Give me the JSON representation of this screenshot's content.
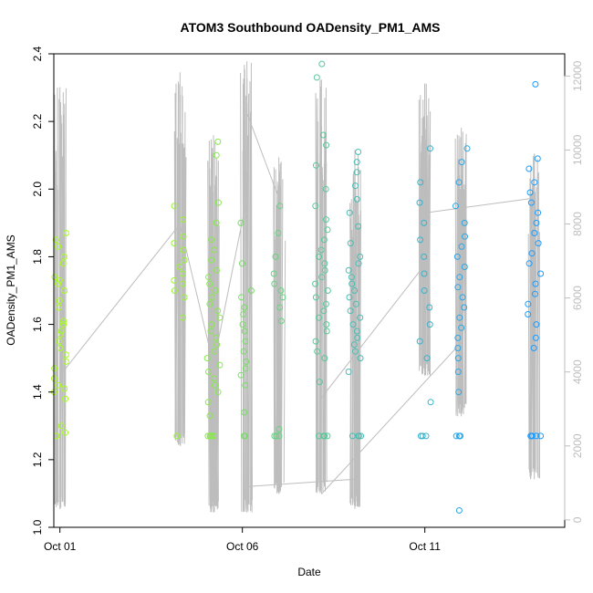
{
  "chart_data": {
    "type": "scatter",
    "title": "ATOM3 Southbound OADensity_PM1_AMS",
    "xlabel": "Date",
    "ylabel": "OADensity_PM1_AMS",
    "x_axis": {
      "type": "date",
      "range": [
        "2016-09-30T20:00",
        "2016-10-14T20:00"
      ],
      "ticks": [
        "Oct 01",
        "Oct 06",
        "Oct 11"
      ],
      "tick_dates": [
        "2016-10-01",
        "2016-10-06",
        "2016-10-11"
      ]
    },
    "y_axis": {
      "range": [
        1.0,
        2.4
      ],
      "ticks": [
        "1.0",
        "1.2",
        "1.4",
        "1.6",
        "1.8",
        "2.0",
        "2.2",
        "2.4"
      ]
    },
    "y2_axis": {
      "side": "right",
      "color": "#bdbdbd",
      "range": [
        -200,
        12600
      ],
      "ticks": [
        "0",
        "2000",
        "4000",
        "6000",
        "8000",
        "10000",
        "12000"
      ],
      "description": "altitude profile (gray line)"
    },
    "grid": false,
    "point_color_ramp": [
      "#a6ff1a",
      "#1a9cff"
    ],
    "profile_color": "#bdbdbd",
    "clusters": [
      {
        "date": "2016-10-01T00:00",
        "values": [
          1.27,
          1.28,
          1.3,
          1.38,
          1.4,
          1.41,
          1.42,
          1.44,
          1.47,
          1.49,
          1.51,
          1.53,
          1.55,
          1.57,
          1.58,
          1.6,
          1.61,
          1.65,
          1.67,
          1.7,
          1.72,
          1.73,
          1.74,
          1.78,
          1.8,
          1.83,
          1.85,
          1.87
        ],
        "alt_range": [
          300,
          11700
        ]
      },
      {
        "date": "2016-10-04T07:00",
        "values": [
          1.27,
          1.62,
          1.68,
          1.7,
          1.72,
          1.73,
          1.75,
          1.77,
          1.79,
          1.82,
          1.84,
          1.86,
          1.91,
          1.95
        ],
        "alt_range": [
          2000,
          12100
        ]
      },
      {
        "date": "2016-10-05T05:00",
        "values": [
          1.27,
          1.27,
          1.27,
          1.27,
          1.27,
          1.33,
          1.37,
          1.4,
          1.42,
          1.44,
          1.46,
          1.48,
          1.5,
          1.52,
          1.54,
          1.56,
          1.58,
          1.6,
          1.62,
          1.64,
          1.66,
          1.68,
          1.7,
          1.72,
          1.74,
          1.76,
          1.79,
          1.82,
          1.85,
          1.9,
          1.96,
          2.1,
          2.14
        ],
        "alt_range": [
          200,
          10400
        ]
      },
      {
        "date": "2016-10-06T03:00",
        "values": [
          1.27,
          1.27,
          1.34,
          1.42,
          1.45,
          1.47,
          1.49,
          1.52,
          1.55,
          1.58,
          1.6,
          1.63,
          1.65,
          1.68,
          1.7,
          1.78,
          1.9
        ],
        "alt_range": [
          200,
          12400
        ]
      },
      {
        "date": "2016-10-07T00:00",
        "values": [
          1.27,
          1.27,
          1.27,
          1.29,
          1.61,
          1.65,
          1.68,
          1.7,
          1.72,
          1.75,
          1.8,
          1.87,
          1.95
        ],
        "alt_range": [
          700,
          9800
        ]
      },
      {
        "date": "2016-10-08T04:00",
        "values": [
          1.27,
          1.27,
          1.27,
          1.27,
          1.43,
          1.5,
          1.52,
          1.55,
          1.58,
          1.6,
          1.62,
          1.64,
          1.66,
          1.68,
          1.7,
          1.72,
          1.74,
          1.76,
          1.78,
          1.8,
          1.82,
          1.85,
          1.88,
          1.91,
          1.95,
          2.0,
          2.07,
          2.13,
          2.16,
          2.33,
          2.37
        ],
        "alt_range": [
          700,
          11900
        ]
      },
      {
        "date": "2016-10-09T02:00",
        "values": [
          1.27,
          1.27,
          1.27,
          1.27,
          1.46,
          1.5,
          1.52,
          1.54,
          1.56,
          1.58,
          1.6,
          1.62,
          1.64,
          1.66,
          1.68,
          1.7,
          1.72,
          1.74,
          1.76,
          1.78,
          1.8,
          1.84,
          1.89,
          1.93,
          1.97,
          2.01,
          2.05,
          2.08,
          2.11
        ],
        "alt_range": [
          300,
          10000
        ]
      },
      {
        "date": "2016-10-11T00:00",
        "values": [
          1.27,
          1.27,
          1.27,
          1.37,
          1.5,
          1.55,
          1.6,
          1.65,
          1.7,
          1.75,
          1.8,
          1.85,
          1.9,
          1.96,
          2.02,
          2.12
        ],
        "alt_range": [
          3900,
          11800
        ]
      },
      {
        "date": "2016-10-12T00:00",
        "values": [
          1.05,
          1.27,
          1.27,
          1.27,
          1.27,
          1.4,
          1.46,
          1.5,
          1.53,
          1.56,
          1.59,
          1.62,
          1.65,
          1.68,
          1.71,
          1.74,
          1.77,
          1.8,
          1.83,
          1.86,
          1.9,
          1.95,
          2.02,
          2.08,
          2.12
        ],
        "alt_range": [
          2800,
          10600
        ]
      },
      {
        "date": "2016-10-14T00:00",
        "values": [
          1.27,
          1.27,
          1.27,
          1.27,
          1.27,
          1.53,
          1.56,
          1.6,
          1.63,
          1.66,
          1.69,
          1.72,
          1.75,
          1.78,
          1.81,
          1.84,
          1.87,
          1.9,
          1.93,
          1.96,
          1.99,
          2.02,
          2.06,
          2.09,
          2.31
        ],
        "alt_range": [
          1100,
          9900
        ]
      }
    ],
    "transit_segments": [
      {
        "points": [
          [
            "2016-10-01T00:00",
            3900
          ],
          [
            "2016-10-04T07:00",
            8000
          ]
        ]
      },
      {
        "points": [
          [
            "2016-10-04T07:00",
            8000
          ],
          [
            "2016-10-05T05:00",
            4200
          ]
        ]
      },
      {
        "points": [
          [
            "2016-10-05T05:00",
            4200
          ],
          [
            "2016-10-06T03:00",
            8700
          ]
        ]
      },
      {
        "points": [
          [
            "2016-10-06T03:00",
            11000
          ],
          [
            "2016-10-07T00:00",
            8700
          ]
        ]
      },
      {
        "points": [
          [
            "2016-10-06T03:00",
            900
          ],
          [
            "2016-10-09T02:00",
            1100
          ]
        ]
      },
      {
        "points": [
          [
            "2016-10-08T04:00",
            700
          ],
          [
            "2016-10-12T00:00",
            4800
          ]
        ]
      },
      {
        "points": [
          [
            "2016-10-08T04:00",
            3300
          ],
          [
            "2016-10-11T00:00",
            6900
          ]
        ]
      },
      {
        "points": [
          [
            "2016-10-11T00:00",
            8300
          ],
          [
            "2016-10-14T00:00",
            8700
          ]
        ]
      }
    ]
  }
}
